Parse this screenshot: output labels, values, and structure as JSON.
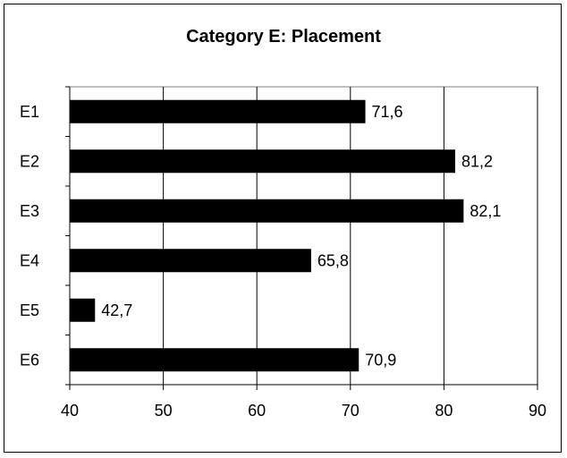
{
  "chart_data": {
    "type": "bar",
    "orientation": "horizontal",
    "title": "Category E: Placement",
    "xlabel": "",
    "ylabel": "",
    "categories": [
      "E1",
      "E2",
      "E3",
      "E4",
      "E5",
      "E6"
    ],
    "values": [
      71.6,
      81.2,
      82.1,
      65.8,
      42.7,
      70.9
    ],
    "data_labels": [
      "71,6",
      "81,2",
      "82,1",
      "65,8",
      "42,7",
      "70,9"
    ],
    "xlim": [
      40,
      90
    ],
    "x_ticks": [
      40,
      50,
      60,
      70,
      80,
      90
    ],
    "grid": "vertical",
    "legend": "none",
    "bar_color": "#000000"
  }
}
